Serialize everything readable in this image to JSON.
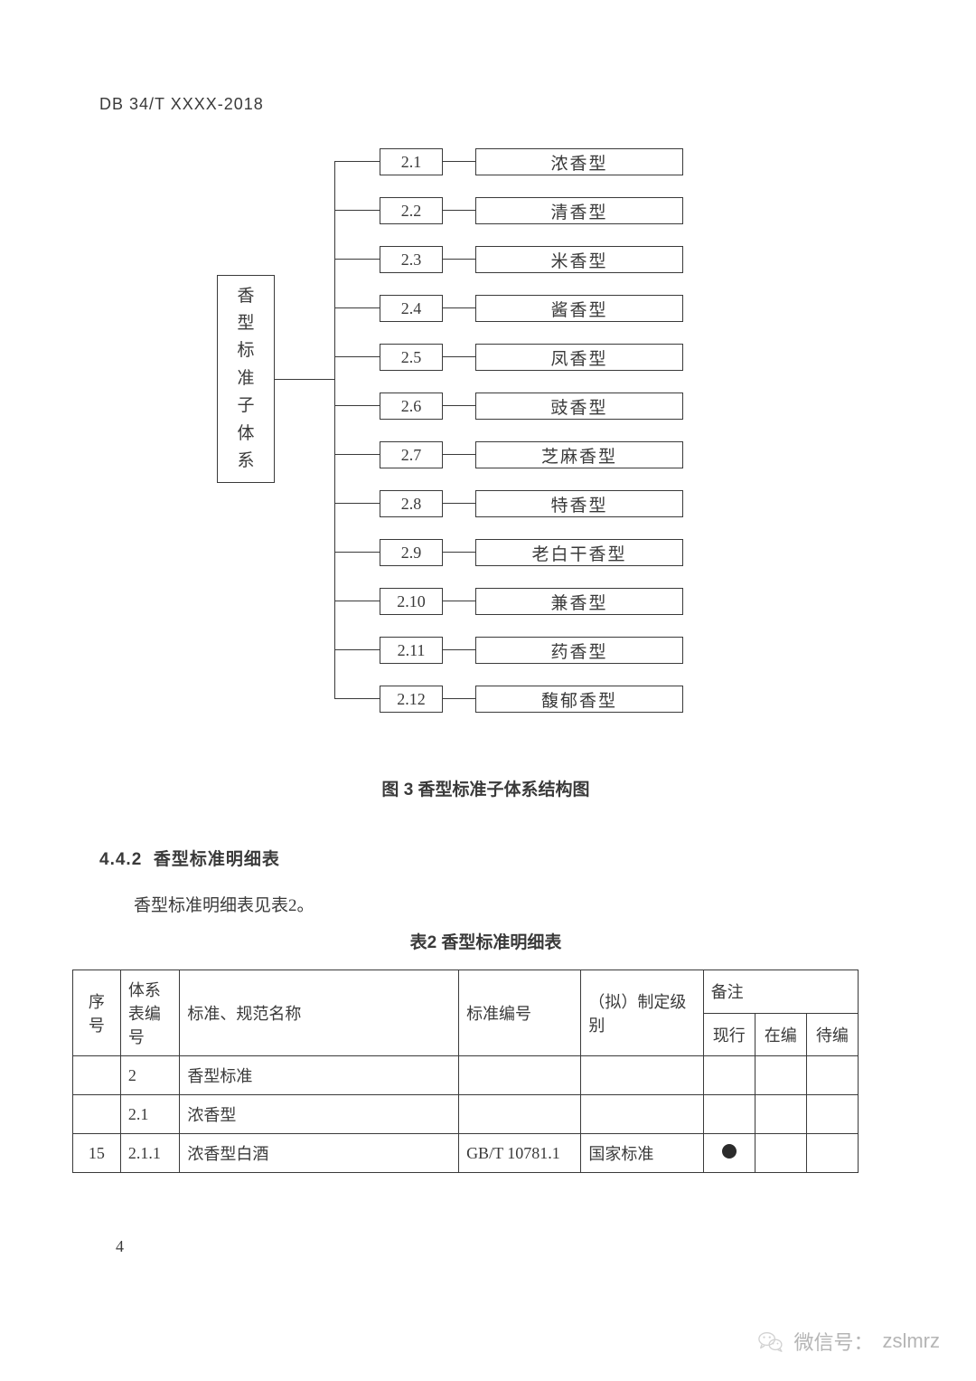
{
  "doc_id": "DB 34/T XXXX-2018",
  "diagram": {
    "root_label": "香型标准子体系",
    "items": [
      {
        "num": "2.1",
        "label": "浓香型"
      },
      {
        "num": "2.2",
        "label": "清香型"
      },
      {
        "num": "2.3",
        "label": "米香型"
      },
      {
        "num": "2.4",
        "label": "酱香型"
      },
      {
        "num": "2.5",
        "label": "凤香型"
      },
      {
        "num": "2.6",
        "label": "豉香型"
      },
      {
        "num": "2.7",
        "label": "芝麻香型"
      },
      {
        "num": "2.8",
        "label": "特香型"
      },
      {
        "num": "2.9",
        "label": "老白干香型"
      },
      {
        "num": "2.10",
        "label": "兼香型"
      },
      {
        "num": "2.11",
        "label": "药香型"
      },
      {
        "num": "2.12",
        "label": "馥郁香型"
      }
    ],
    "row_spacing": 54,
    "row_start_top": 0
  },
  "figure_caption": "图 3 香型标准子体系结构图",
  "section": {
    "number": "4.4.2",
    "title": "香型标准明细表"
  },
  "body_line": "香型标准明细表见表2。",
  "table_caption": "表2 香型标准明细表",
  "table": {
    "headers": {
      "seq": "序号",
      "sys": "体系表编号",
      "name": "标准、规范名称",
      "code": "标准编号",
      "level": "（拟）制定级别",
      "note": "备注",
      "n1": "现行",
      "n2": "在编",
      "n3": "待编"
    },
    "rows": [
      {
        "seq": "",
        "sys": "2",
        "name": "香型标准",
        "code": "",
        "level": "",
        "n1": "",
        "n2": "",
        "n3": ""
      },
      {
        "seq": "",
        "sys": "2.1",
        "name": "浓香型",
        "code": "",
        "level": "",
        "n1": "",
        "n2": "",
        "n3": ""
      },
      {
        "seq": "15",
        "sys": "2.1.1",
        "name": "浓香型白酒",
        "code": "GB/T 10781.1",
        "level": "国家标准",
        "n1": "dot",
        "n2": "",
        "n3": ""
      }
    ]
  },
  "page_number": "4",
  "footer": {
    "label": "微信号：",
    "value": "zslmrz"
  }
}
